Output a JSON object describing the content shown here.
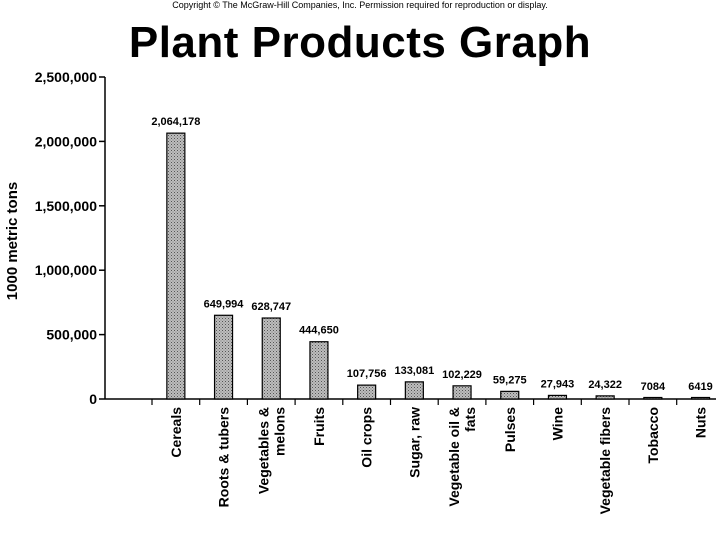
{
  "header": {
    "copyright": "Copyright © The McGraw-Hill Companies, Inc. Permission required for reproduction or display."
  },
  "chart_data": {
    "type": "bar",
    "title": "Plant Products Graph",
    "xlabel": "",
    "ylabel": "1000 metric tons",
    "ylim": [
      0,
      2500000
    ],
    "yticks": [
      0,
      500000,
      1000000,
      1500000,
      2000000,
      2500000
    ],
    "ytick_labels": [
      "0",
      "500,000",
      "1,000,000",
      "1,500,000",
      "2,000,000",
      "2,500,000"
    ],
    "categories": [
      "Cereals",
      "Roots & tubers",
      "Vegetables & melons",
      "Fruits",
      "Oil crops",
      "Sugar, raw",
      "Vegetable oil & fats",
      "Pulses",
      "Wine",
      "Vegetable fibers",
      "Tobacco",
      "Nuts"
    ],
    "category_lines": [
      [
        "Cereals"
      ],
      [
        "Roots & tubers"
      ],
      [
        "Vegetables &",
        "melons"
      ],
      [
        "Fruits"
      ],
      [
        "Oil crops"
      ],
      [
        "Sugar, raw"
      ],
      [
        "Vegetable oil &",
        "fats"
      ],
      [
        "Pulses"
      ],
      [
        "Wine"
      ],
      [
        "Vegetable fibers"
      ],
      [
        "Tobacco"
      ],
      [
        "Nuts"
      ]
    ],
    "values": [
      2064178,
      649994,
      628747,
      444650,
      107756,
      133081,
      102229,
      59275,
      27943,
      24322,
      7084,
      6419
    ],
    "data_labels": [
      "2,064,178",
      "649,994",
      "628,747",
      "444,650",
      "107,756",
      "133,081",
      "102,229",
      "59,275",
      "27,943",
      "24,322",
      "7084",
      "6419"
    ],
    "grid": false,
    "legend": "none",
    "bar_color": "#a9a9a9"
  }
}
